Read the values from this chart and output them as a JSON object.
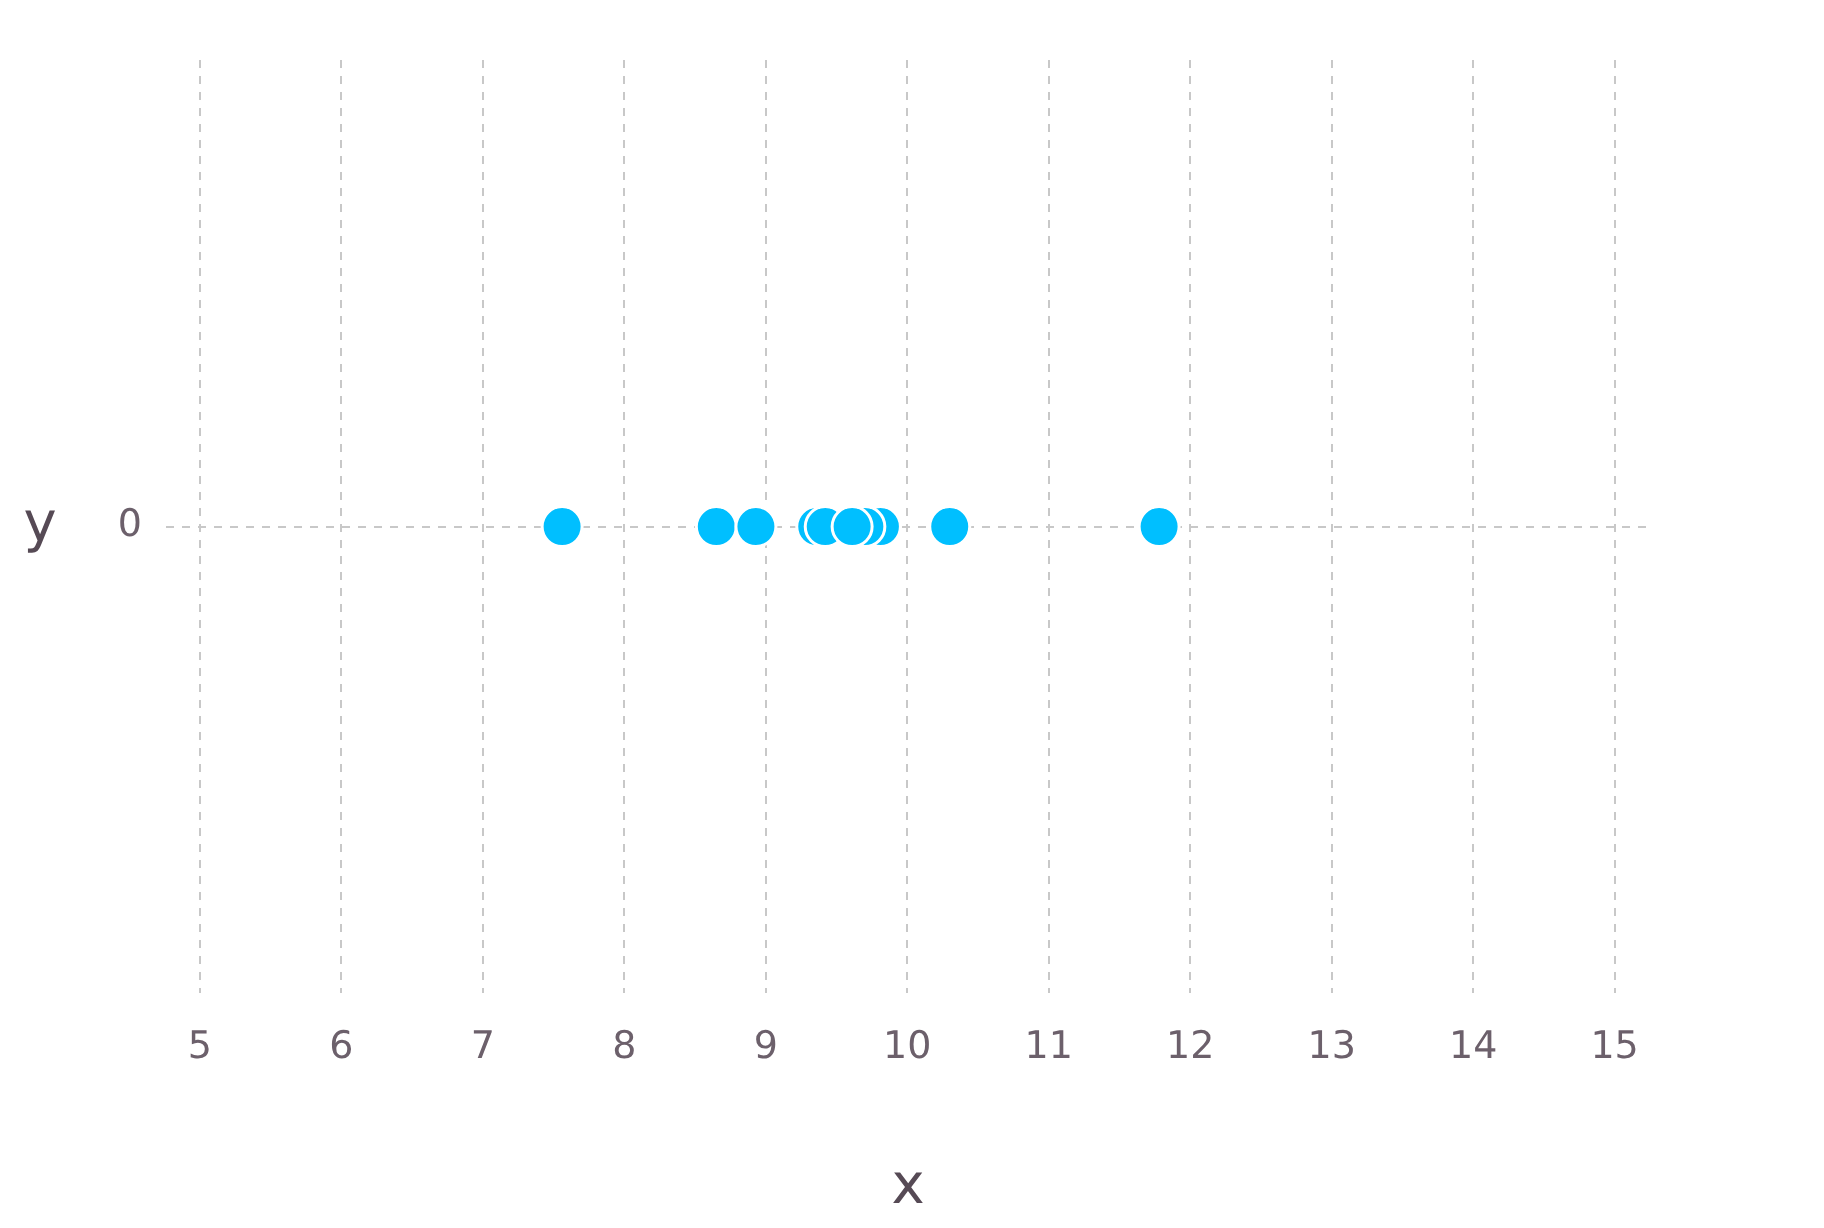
{
  "chart_data": {
    "type": "scatter",
    "orientation": "horizontal",
    "xlabel": "x",
    "ylabel": "y",
    "categories": [
      "0"
    ],
    "series": [
      {
        "color": "#00bfff",
        "values": [
          7.56
        ]
      },
      {
        "color": "#00bfff",
        "values": [
          8.65
        ]
      },
      {
        "color": "#00bfff",
        "values": [
          8.93
        ]
      },
      {
        "color": "#00bfff",
        "values": [
          9.36
        ]
      },
      {
        "color": "#00bfff",
        "values": [
          9.42
        ]
      },
      {
        "color": "#00bfff",
        "values": [
          9.81
        ]
      },
      {
        "color": "#00bfff",
        "values": [
          9.7
        ]
      },
      {
        "color": "#00bfff",
        "values": [
          9.61
        ]
      },
      {
        "color": "#00bfff",
        "values": [
          10.3
        ]
      },
      {
        "color": "#00bfff",
        "values": [
          11.78
        ]
      }
    ],
    "marker": "circle",
    "xlim": [
      4.76,
      15.25
    ],
    "xticks": [
      5,
      6,
      7,
      8,
      9,
      10,
      11,
      12,
      13,
      14,
      15
    ],
    "grid": true
  }
}
